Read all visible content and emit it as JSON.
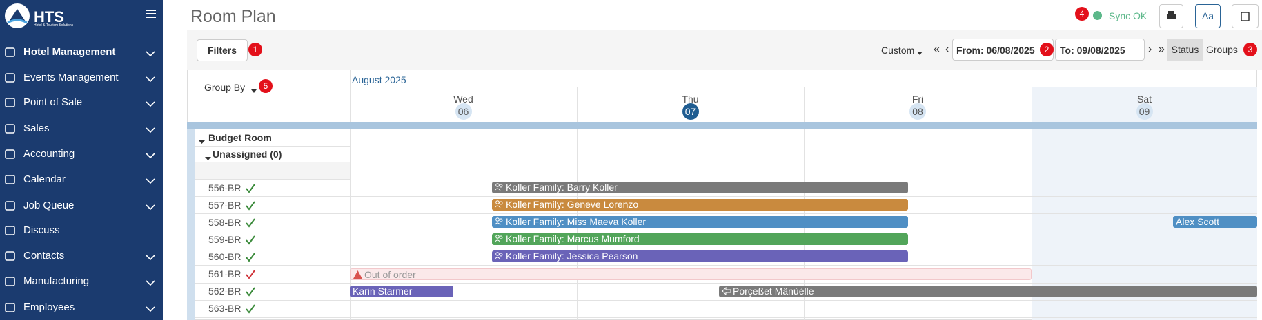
{
  "sidebar": {
    "logo": "HTS",
    "logo_subtitle": "Hotel & Tourism Solutions",
    "menu": [
      {
        "label": "Hotel Management",
        "expandable": true,
        "active": true
      },
      {
        "label": "Events Management",
        "expandable": true
      },
      {
        "label": "Point of Sale",
        "expandable": true
      },
      {
        "label": "Sales",
        "expandable": true
      },
      {
        "label": "Accounting",
        "expandable": true
      },
      {
        "label": "Calendar",
        "expandable": true
      },
      {
        "label": "Job Queue",
        "expandable": true
      },
      {
        "label": "Discuss",
        "expandable": false
      },
      {
        "label": "Contacts",
        "expandable": true
      },
      {
        "label": "Manufacturing",
        "expandable": true
      },
      {
        "label": "Employees",
        "expandable": true
      }
    ]
  },
  "header": {
    "title": "Room Plan",
    "sync_badge": "4",
    "sync_status": "Sync OK",
    "font_button": "Aa"
  },
  "toolbar": {
    "filters": "Filters",
    "filters_badge": "1",
    "range_mode": "Custom",
    "first": "«",
    "prev": "‹",
    "from": "From: 06/08/2025",
    "from_badge": "2",
    "to": "To: 09/08/2025",
    "next": "›",
    "last": "»",
    "status": "Status",
    "groups": "Groups",
    "groups_badge": "3"
  },
  "grid": {
    "group_by": "Group By",
    "group_by_badge": "5",
    "month": "August 2025",
    "days": [
      {
        "weekday": "Wed",
        "day": "06"
      },
      {
        "weekday": "Thu",
        "day": "07",
        "today": true
      },
      {
        "weekday": "Fri",
        "day": "08"
      },
      {
        "weekday": "Sat",
        "day": "09",
        "weekend": true
      }
    ],
    "group": "Budget Room",
    "subgroup": "Unassigned (0)",
    "rooms": [
      {
        "name": "556-BR",
        "housekeeping_color": "#3a8a3a",
        "bookings": [
          {
            "label": "Koller Family: Barry Koller",
            "color": "#7a7a7a",
            "icon": "group"
          }
        ]
      },
      {
        "name": "557-BR",
        "housekeeping_color": "#3a8a3a",
        "bookings": [
          {
            "label": "Koller Family: Geneve Lorenzo",
            "color": "#c98a3e",
            "icon": "group"
          }
        ]
      },
      {
        "name": "558-BR",
        "housekeeping_color": "#3a8a3a",
        "bookings": [
          {
            "label": "Koller Family: Miss Maeva Koller",
            "color": "#4f8fc4",
            "icon": "group"
          },
          {
            "label": "Alex Scott",
            "color": "#4f8fc4"
          }
        ]
      },
      {
        "name": "559-BR",
        "housekeeping_color": "#3a8a3a",
        "bookings": [
          {
            "label": "Koller Family: Marcus Mumford",
            "color": "#52a55a",
            "icon": "group"
          }
        ]
      },
      {
        "name": "560-BR",
        "housekeeping_color": "#3a8a3a",
        "bookings": [
          {
            "label": "Koller Family: Jessica Pearson",
            "color": "#6a63b8",
            "icon": "group"
          }
        ]
      },
      {
        "name": "561-BR",
        "housekeeping_color": "#d0343a",
        "bookings": [
          {
            "label": "Out of order",
            "color": "#fbe9ea",
            "icon": "warning"
          }
        ]
      },
      {
        "name": "562-BR",
        "housekeeping_color": "#3a8a3a",
        "bookings": [
          {
            "label": "Karin Starmer",
            "color": "#6a63b8"
          },
          {
            "label": "Porçeßet Mänùèlle",
            "color": "#7a7a7a",
            "icon": "check-in"
          }
        ]
      },
      {
        "name": "563-BR",
        "housekeeping_color": "#3a8a3a",
        "bookings": []
      }
    ]
  }
}
